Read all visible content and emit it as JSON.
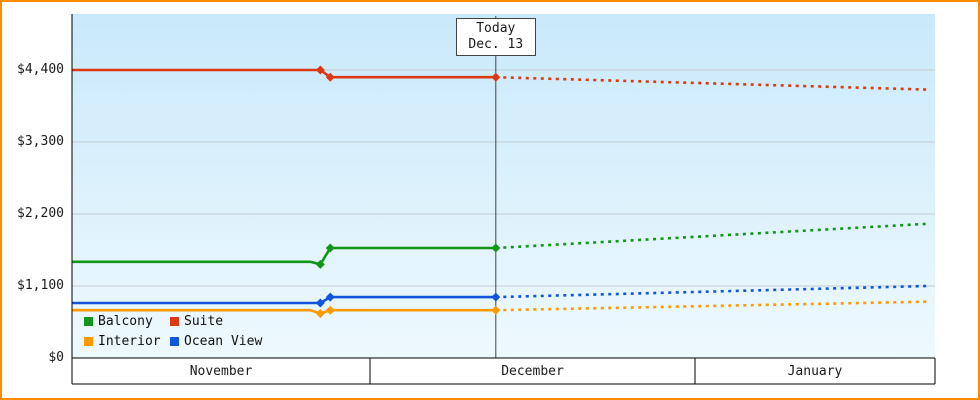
{
  "colors": {
    "frame_border": "#ff8c00",
    "plot_top": "#c9e9fa",
    "plot_bottom": "#eef9fe",
    "grid": "#c6cace",
    "axis": "#000000",
    "today_line": "#444444",
    "annotation_border": "#444444",
    "annotation_bg": "#ffffff",
    "text": "#1a1a1a"
  },
  "chart_data": {
    "type": "line",
    "ylim": [
      0,
      4400
    ],
    "y_ticks": [
      {
        "label": "$0",
        "value": 0
      },
      {
        "label": "$1,100",
        "value": 1100
      },
      {
        "label": "$2,200",
        "value": 2200
      },
      {
        "label": "$3,300",
        "value": 3300
      },
      {
        "label": "$4,400",
        "value": 4400
      }
    ],
    "months": [
      {
        "label": "November",
        "days": 30
      },
      {
        "label": "December",
        "days": 31
      },
      {
        "label": "January",
        "days": 31
      }
    ],
    "today": {
      "m": "Dec",
      "d": 13
    },
    "annotation": {
      "line1": "Today",
      "line2": "Dec. 13"
    },
    "legend_rows": [
      [
        {
          "name": "Balcony",
          "color": "#109618"
        },
        {
          "name": "Suite",
          "color": "#dc3912"
        }
      ],
      [
        {
          "name": "Interior",
          "color": "#ff9900"
        },
        {
          "name": "Ocean View",
          "color": "#1155dd"
        }
      ]
    ],
    "series": [
      {
        "name": "Suite",
        "color": "#dc3912",
        "history": [
          {
            "m": "Nov",
            "d": 1,
            "v": 4400
          },
          {
            "m": "Nov",
            "d": 26,
            "v": 4400,
            "marker": true
          },
          {
            "m": "Nov",
            "d": 27,
            "v": 4290,
            "marker": true
          },
          {
            "m": "Dec",
            "d": 13,
            "v": 4290,
            "marker": true
          }
        ],
        "forecast": [
          {
            "m": "Dec",
            "d": 13,
            "v": 4290
          },
          {
            "m": "Jan",
            "d": 31,
            "v": 4100
          }
        ]
      },
      {
        "name": "Balcony",
        "color": "#109618",
        "history": [
          {
            "m": "Nov",
            "d": 1,
            "v": 1470
          },
          {
            "m": "Nov",
            "d": 25,
            "v": 1470
          },
          {
            "m": "Nov",
            "d": 26,
            "v": 1430,
            "marker": true
          },
          {
            "m": "Nov",
            "d": 27,
            "v": 1680,
            "marker": true
          },
          {
            "m": "Dec",
            "d": 13,
            "v": 1680,
            "marker": true
          }
        ],
        "forecast": [
          {
            "m": "Dec",
            "d": 13,
            "v": 1680
          },
          {
            "m": "Jan",
            "d": 31,
            "v": 2050
          }
        ]
      },
      {
        "name": "Interior",
        "color": "#ff9900",
        "history": [
          {
            "m": "Nov",
            "d": 1,
            "v": 730
          },
          {
            "m": "Nov",
            "d": 25,
            "v": 730
          },
          {
            "m": "Nov",
            "d": 26,
            "v": 680,
            "marker": true
          },
          {
            "m": "Nov",
            "d": 27,
            "v": 730,
            "marker": true
          },
          {
            "m": "Dec",
            "d": 13,
            "v": 730,
            "marker": true
          }
        ],
        "forecast": [
          {
            "m": "Dec",
            "d": 13,
            "v": 730
          },
          {
            "m": "Jan",
            "d": 31,
            "v": 860
          }
        ]
      },
      {
        "name": "Ocean View",
        "color": "#1155dd",
        "history": [
          {
            "m": "Nov",
            "d": 1,
            "v": 840
          },
          {
            "m": "Nov",
            "d": 26,
            "v": 840,
            "marker": true
          },
          {
            "m": "Nov",
            "d": 27,
            "v": 930,
            "marker": true
          },
          {
            "m": "Dec",
            "d": 13,
            "v": 930,
            "marker": true
          }
        ],
        "forecast": [
          {
            "m": "Dec",
            "d": 13,
            "v": 930
          },
          {
            "m": "Jan",
            "d": 31,
            "v": 1100
          }
        ]
      }
    ]
  }
}
